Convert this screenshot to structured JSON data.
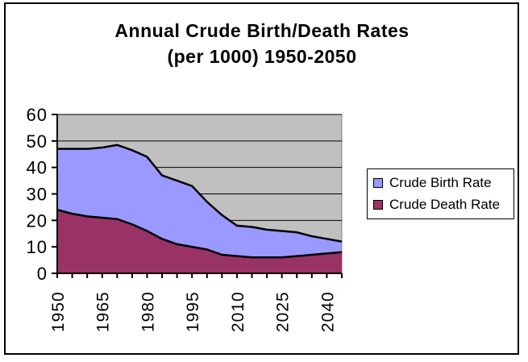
{
  "window": {
    "background": "#FFFFFF",
    "border_color": "#000000"
  },
  "title": {
    "line1": "Annual Crude Birth/Death Rates",
    "line2": "(per 1000) 1950-2050"
  },
  "chart_data": {
    "type": "area",
    "title": "Annual Crude Birth/Death Rates (per 1000) 1950-2050",
    "x": [
      1950,
      1955,
      1960,
      1965,
      1970,
      1975,
      1980,
      1985,
      1990,
      1995,
      2000,
      2005,
      2010,
      2015,
      2020,
      2025,
      2030,
      2035,
      2040,
      2045
    ],
    "x_labeled_ticks": [
      "1950",
      "1965",
      "1980",
      "1995",
      "2010",
      "2025",
      "2040"
    ],
    "x_label_every": 3,
    "series": [
      {
        "name": "Crude Birth Rate",
        "color": "#9999FF",
        "values": [
          47,
          47,
          47,
          47.5,
          48.5,
          46.5,
          44,
          37,
          35,
          33,
          27,
          22,
          18,
          17.5,
          16.5,
          16,
          15.5,
          14,
          13,
          12
        ]
      },
      {
        "name": "Crude Death Rate",
        "color": "#993366",
        "values": [
          24,
          22.5,
          21.5,
          21,
          20.5,
          18.5,
          16,
          13,
          11,
          10,
          9,
          7,
          6.5,
          6,
          6,
          6,
          6.5,
          7,
          7.5,
          8
        ]
      }
    ],
    "xlabel": "",
    "ylabel": "",
    "ylim": [
      0,
      60
    ],
    "y_ticks": [
      0,
      10,
      20,
      30,
      40,
      50,
      60
    ],
    "grid": true,
    "plot_background": "#C0C0C0",
    "outline_color": "#000000",
    "legend_position": "right"
  }
}
